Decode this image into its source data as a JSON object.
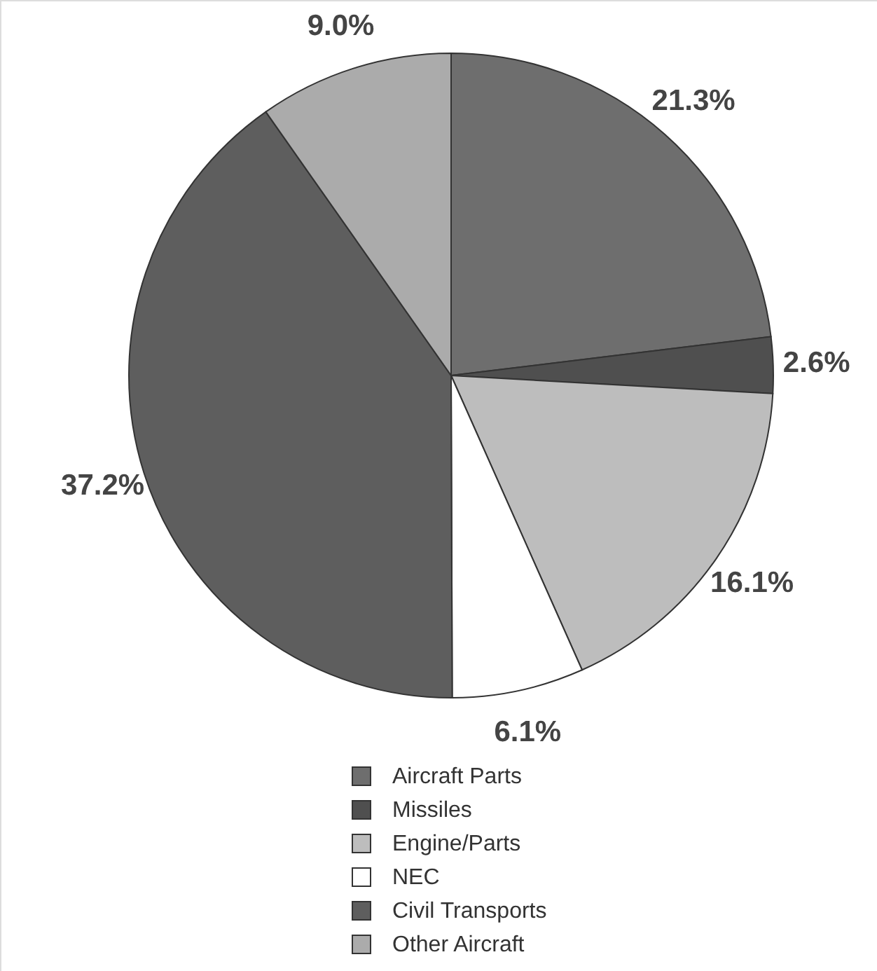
{
  "chart_data": {
    "type": "pie",
    "categories": [
      "Aircraft Parts",
      "Missiles",
      "Engine/Parts",
      "NEC",
      "Civil Transports",
      "Other Aircraft"
    ],
    "values": [
      21.3,
      2.6,
      16.1,
      6.1,
      37.2,
      9.0
    ],
    "colors": [
      "#6e6e6e",
      "#4f4f4f",
      "#bdbdbd",
      "#ffffff",
      "#5e5e5e",
      "#ababab"
    ],
    "value_labels": [
      "21.3%",
      "2.6%",
      "16.1%",
      "6.1%",
      "37.2%",
      "9.0%"
    ],
    "legend": "bottom"
  }
}
